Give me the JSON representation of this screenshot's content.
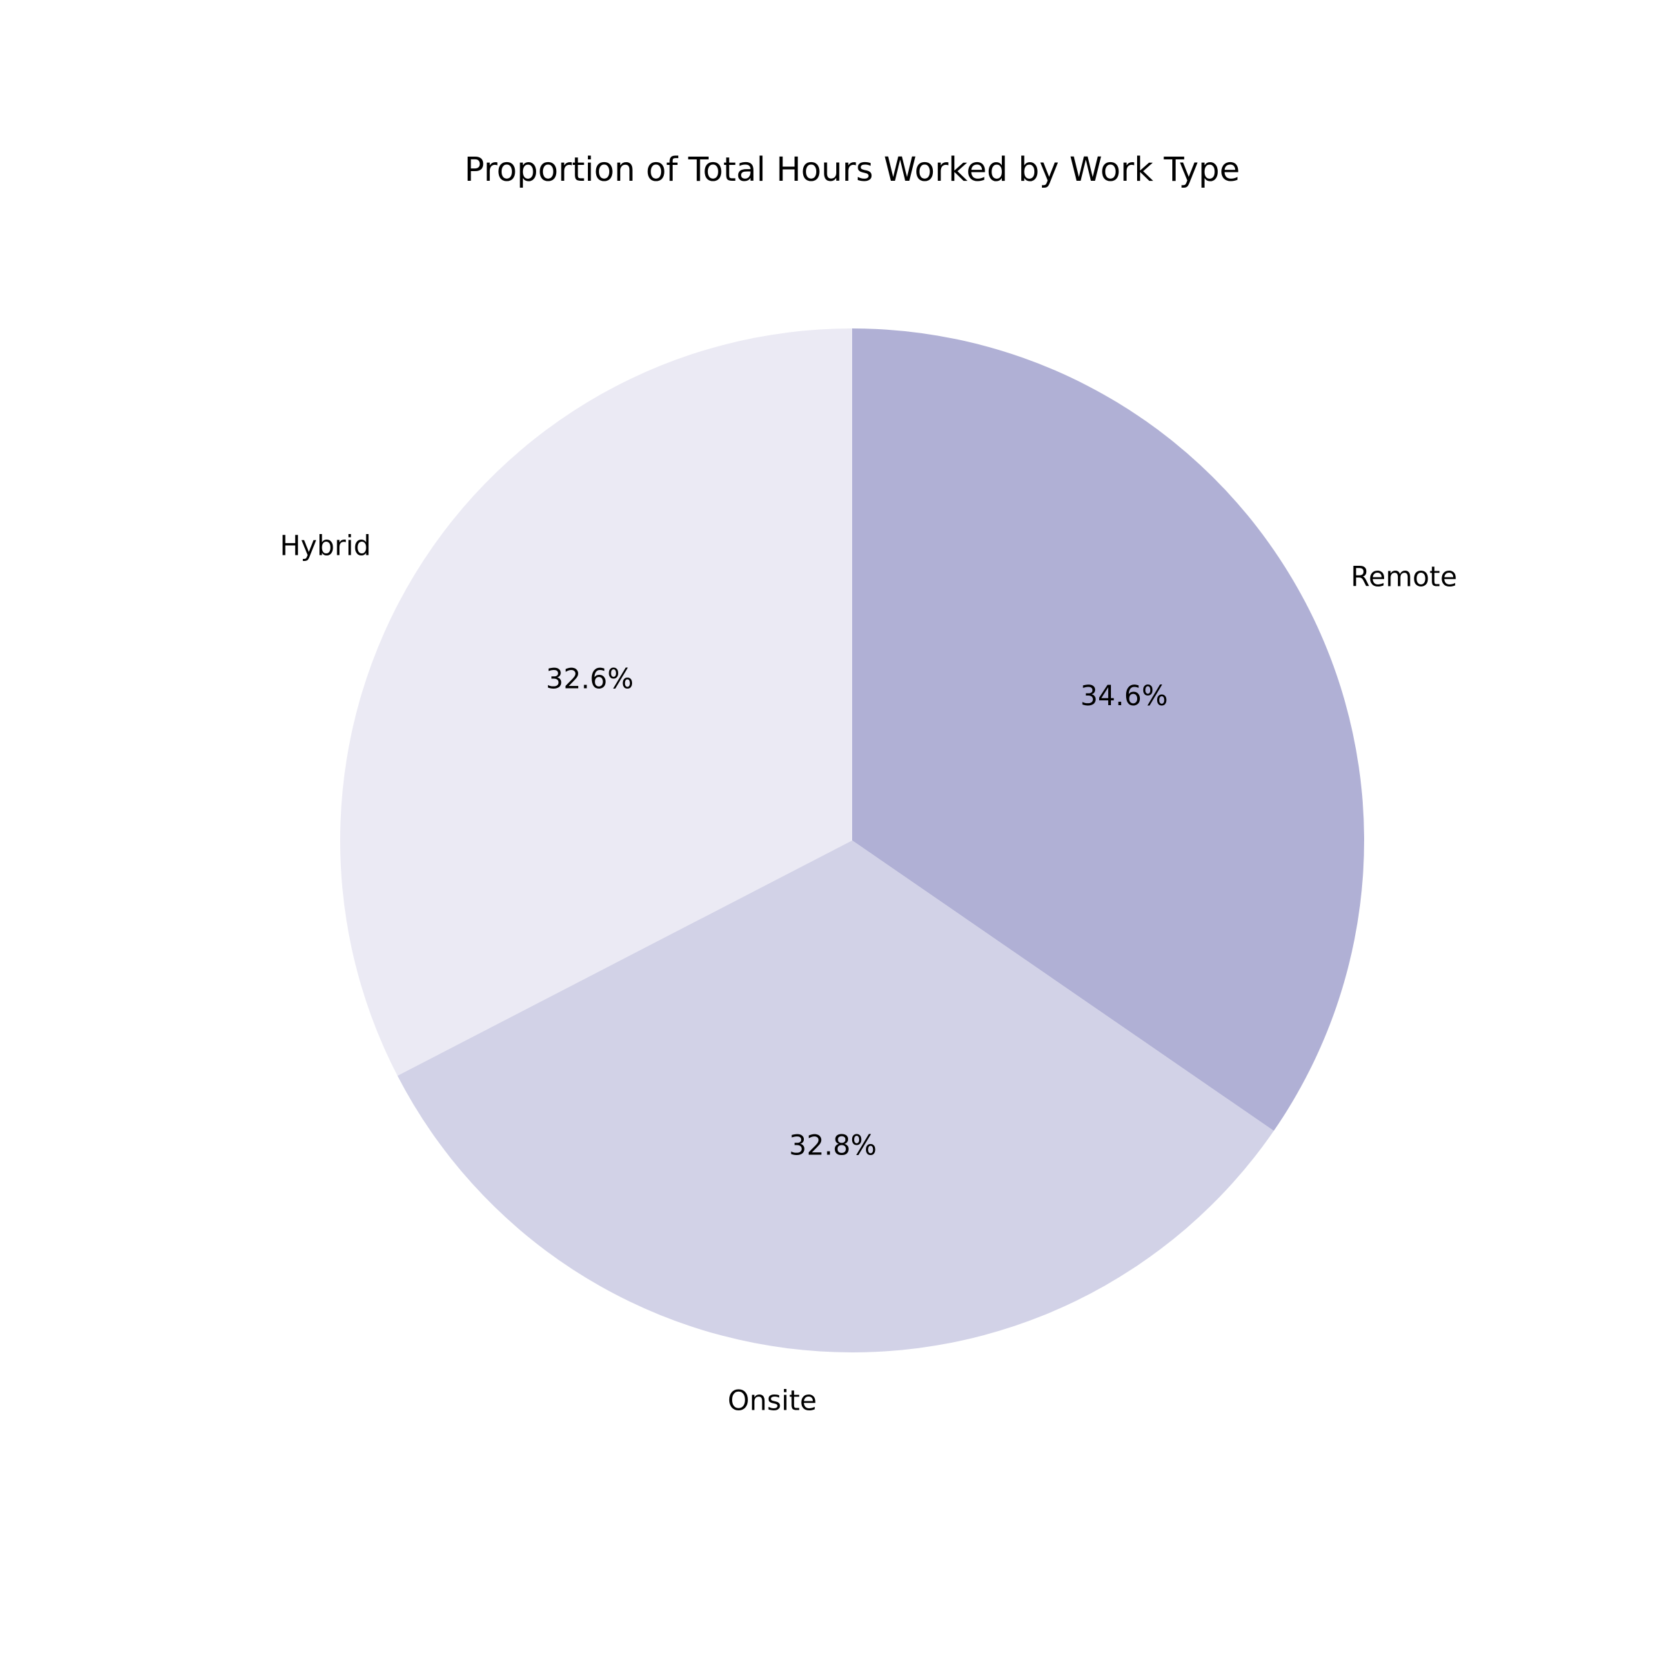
{
  "chart_data": {
    "type": "pie",
    "title": "Proportion of Total Hours Worked by Work Type",
    "categories": [
      "Remote",
      "Onsite",
      "Hybrid"
    ],
    "values": [
      34.6,
      32.8,
      32.6
    ],
    "percent_labels": [
      "34.6%",
      "32.8%",
      "32.6%"
    ],
    "colors": [
      "#b0b0d5",
      "#d2d2e7",
      "#ebeaf4"
    ],
    "start_angle_deg": 90,
    "direction": "clockwise"
  }
}
